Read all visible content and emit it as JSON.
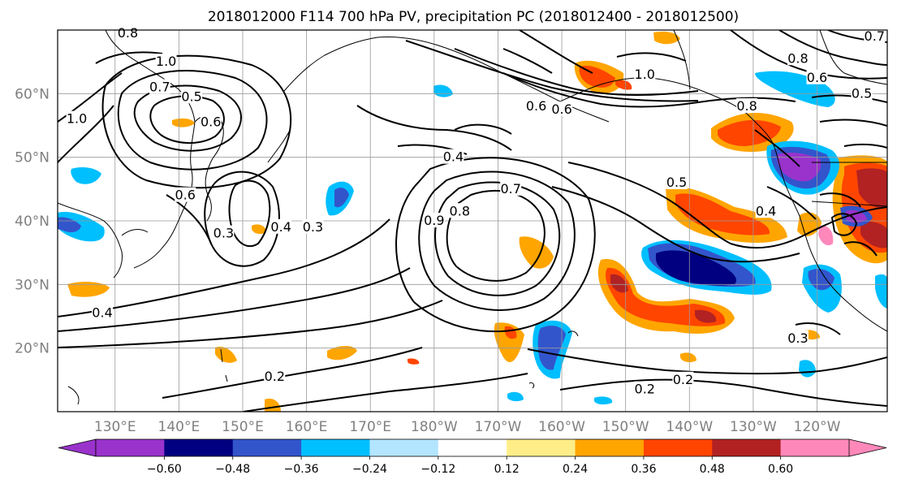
{
  "figure": {
    "title": "2018012000 F114 700 hPa PV, precipitation PC (2018012400 - 2018012500)"
  },
  "map": {
    "projection": "equirectangular",
    "lon_range": [
      121,
      251
    ],
    "lat_range": [
      10,
      70
    ],
    "gridlines": true,
    "lat_ticks": [
      {
        "lat": 60,
        "label": "60°N"
      },
      {
        "lat": 50,
        "label": "50°N"
      },
      {
        "lat": 40,
        "label": "40°N"
      },
      {
        "lat": 30,
        "label": "30°N"
      },
      {
        "lat": 20,
        "label": "20°N"
      }
    ],
    "lon_ticks": [
      {
        "lon": 130,
        "label": "130°E"
      },
      {
        "lon": 140,
        "label": "140°E"
      },
      {
        "lon": 150,
        "label": "150°E"
      },
      {
        "lon": 160,
        "label": "160°E"
      },
      {
        "lon": 170,
        "label": "170°E"
      },
      {
        "lon": 180,
        "label": "180°W"
      },
      {
        "lon": 190,
        "label": "170°W"
      },
      {
        "lon": 200,
        "label": "160°W"
      },
      {
        "lon": 210,
        "label": "150°W"
      },
      {
        "lon": 220,
        "label": "140°W"
      },
      {
        "lon": 230,
        "label": "130°W"
      },
      {
        "lon": 240,
        "label": "120°W"
      }
    ]
  },
  "colorbar": {
    "extend": "both",
    "colors": [
      "#9933cc",
      "#000080",
      "#3355cc",
      "#00bfff",
      "#b3e5ff",
      "#ffffff",
      "#ffee88",
      "#ffa500",
      "#ff4500",
      "#b22222",
      "#ff88bb"
    ],
    "boundaries": [
      -0.72,
      -0.6,
      -0.48,
      -0.36,
      -0.24,
      -0.12,
      0.12,
      0.24,
      0.36,
      0.48,
      0.6,
      0.72
    ],
    "tick_values": [
      -0.6,
      -0.48,
      -0.36,
      -0.24,
      -0.12,
      0.12,
      0.24,
      0.36,
      0.48,
      0.6
    ],
    "tick_labels": [
      "−0.60",
      "−0.48",
      "−0.36",
      "−0.24",
      "−0.12",
      "0.12",
      "0.24",
      "0.36",
      "0.48",
      "0.60"
    ]
  },
  "contour_labels": [
    {
      "text": "1.0",
      "lon": 138,
      "lat": 65
    },
    {
      "text": "0.7",
      "lon": 137,
      "lat": 61
    },
    {
      "text": "0.5",
      "lon": 142,
      "lat": 59.5
    },
    {
      "text": "1.0",
      "lon": 124,
      "lat": 56
    },
    {
      "text": "0.6",
      "lon": 145,
      "lat": 55.5
    },
    {
      "text": "0.6",
      "lon": 141,
      "lat": 44
    },
    {
      "text": "0.3",
      "lon": 147,
      "lat": 38
    },
    {
      "text": "0.4",
      "lon": 156,
      "lat": 39
    },
    {
      "text": "0.3",
      "lon": 161,
      "lat": 39
    },
    {
      "text": "0.4",
      "lon": 183,
      "lat": 50
    },
    {
      "text": "0.7",
      "lon": 192,
      "lat": 45
    },
    {
      "text": "0.8",
      "lon": 184,
      "lat": 41.5
    },
    {
      "text": "0.9",
      "lon": 180,
      "lat": 40
    },
    {
      "text": "0.5",
      "lon": 218,
      "lat": 46
    },
    {
      "text": "0.4",
      "lon": 232,
      "lat": 41.5
    },
    {
      "text": "0.6",
      "lon": 196,
      "lat": 58
    },
    {
      "text": "0.6",
      "lon": 200,
      "lat": 57.5
    },
    {
      "text": "0.8",
      "lon": 229,
      "lat": 58
    },
    {
      "text": "0.8",
      "lon": 237,
      "lat": 65.5
    },
    {
      "text": "0.6",
      "lon": 240,
      "lat": 62.5
    },
    {
      "text": "0.5",
      "lon": 247,
      "lat": 60
    },
    {
      "text": "1.0",
      "lon": 213,
      "lat": 63
    },
    {
      "text": "0.4",
      "lon": 128,
      "lat": 25.5
    },
    {
      "text": "0.2",
      "lon": 155,
      "lat": 15.5
    },
    {
      "text": "0.2",
      "lon": 213,
      "lat": 13.5
    },
    {
      "text": "0.2",
      "lon": 219,
      "lat": 15
    },
    {
      "text": "0.3",
      "lon": 237,
      "lat": 21.5
    },
    {
      "text": "0.8",
      "lon": 132,
      "lat": 69.5
    },
    {
      "text": "0.7",
      "lon": 249,
      "lat": 69
    }
  ]
}
